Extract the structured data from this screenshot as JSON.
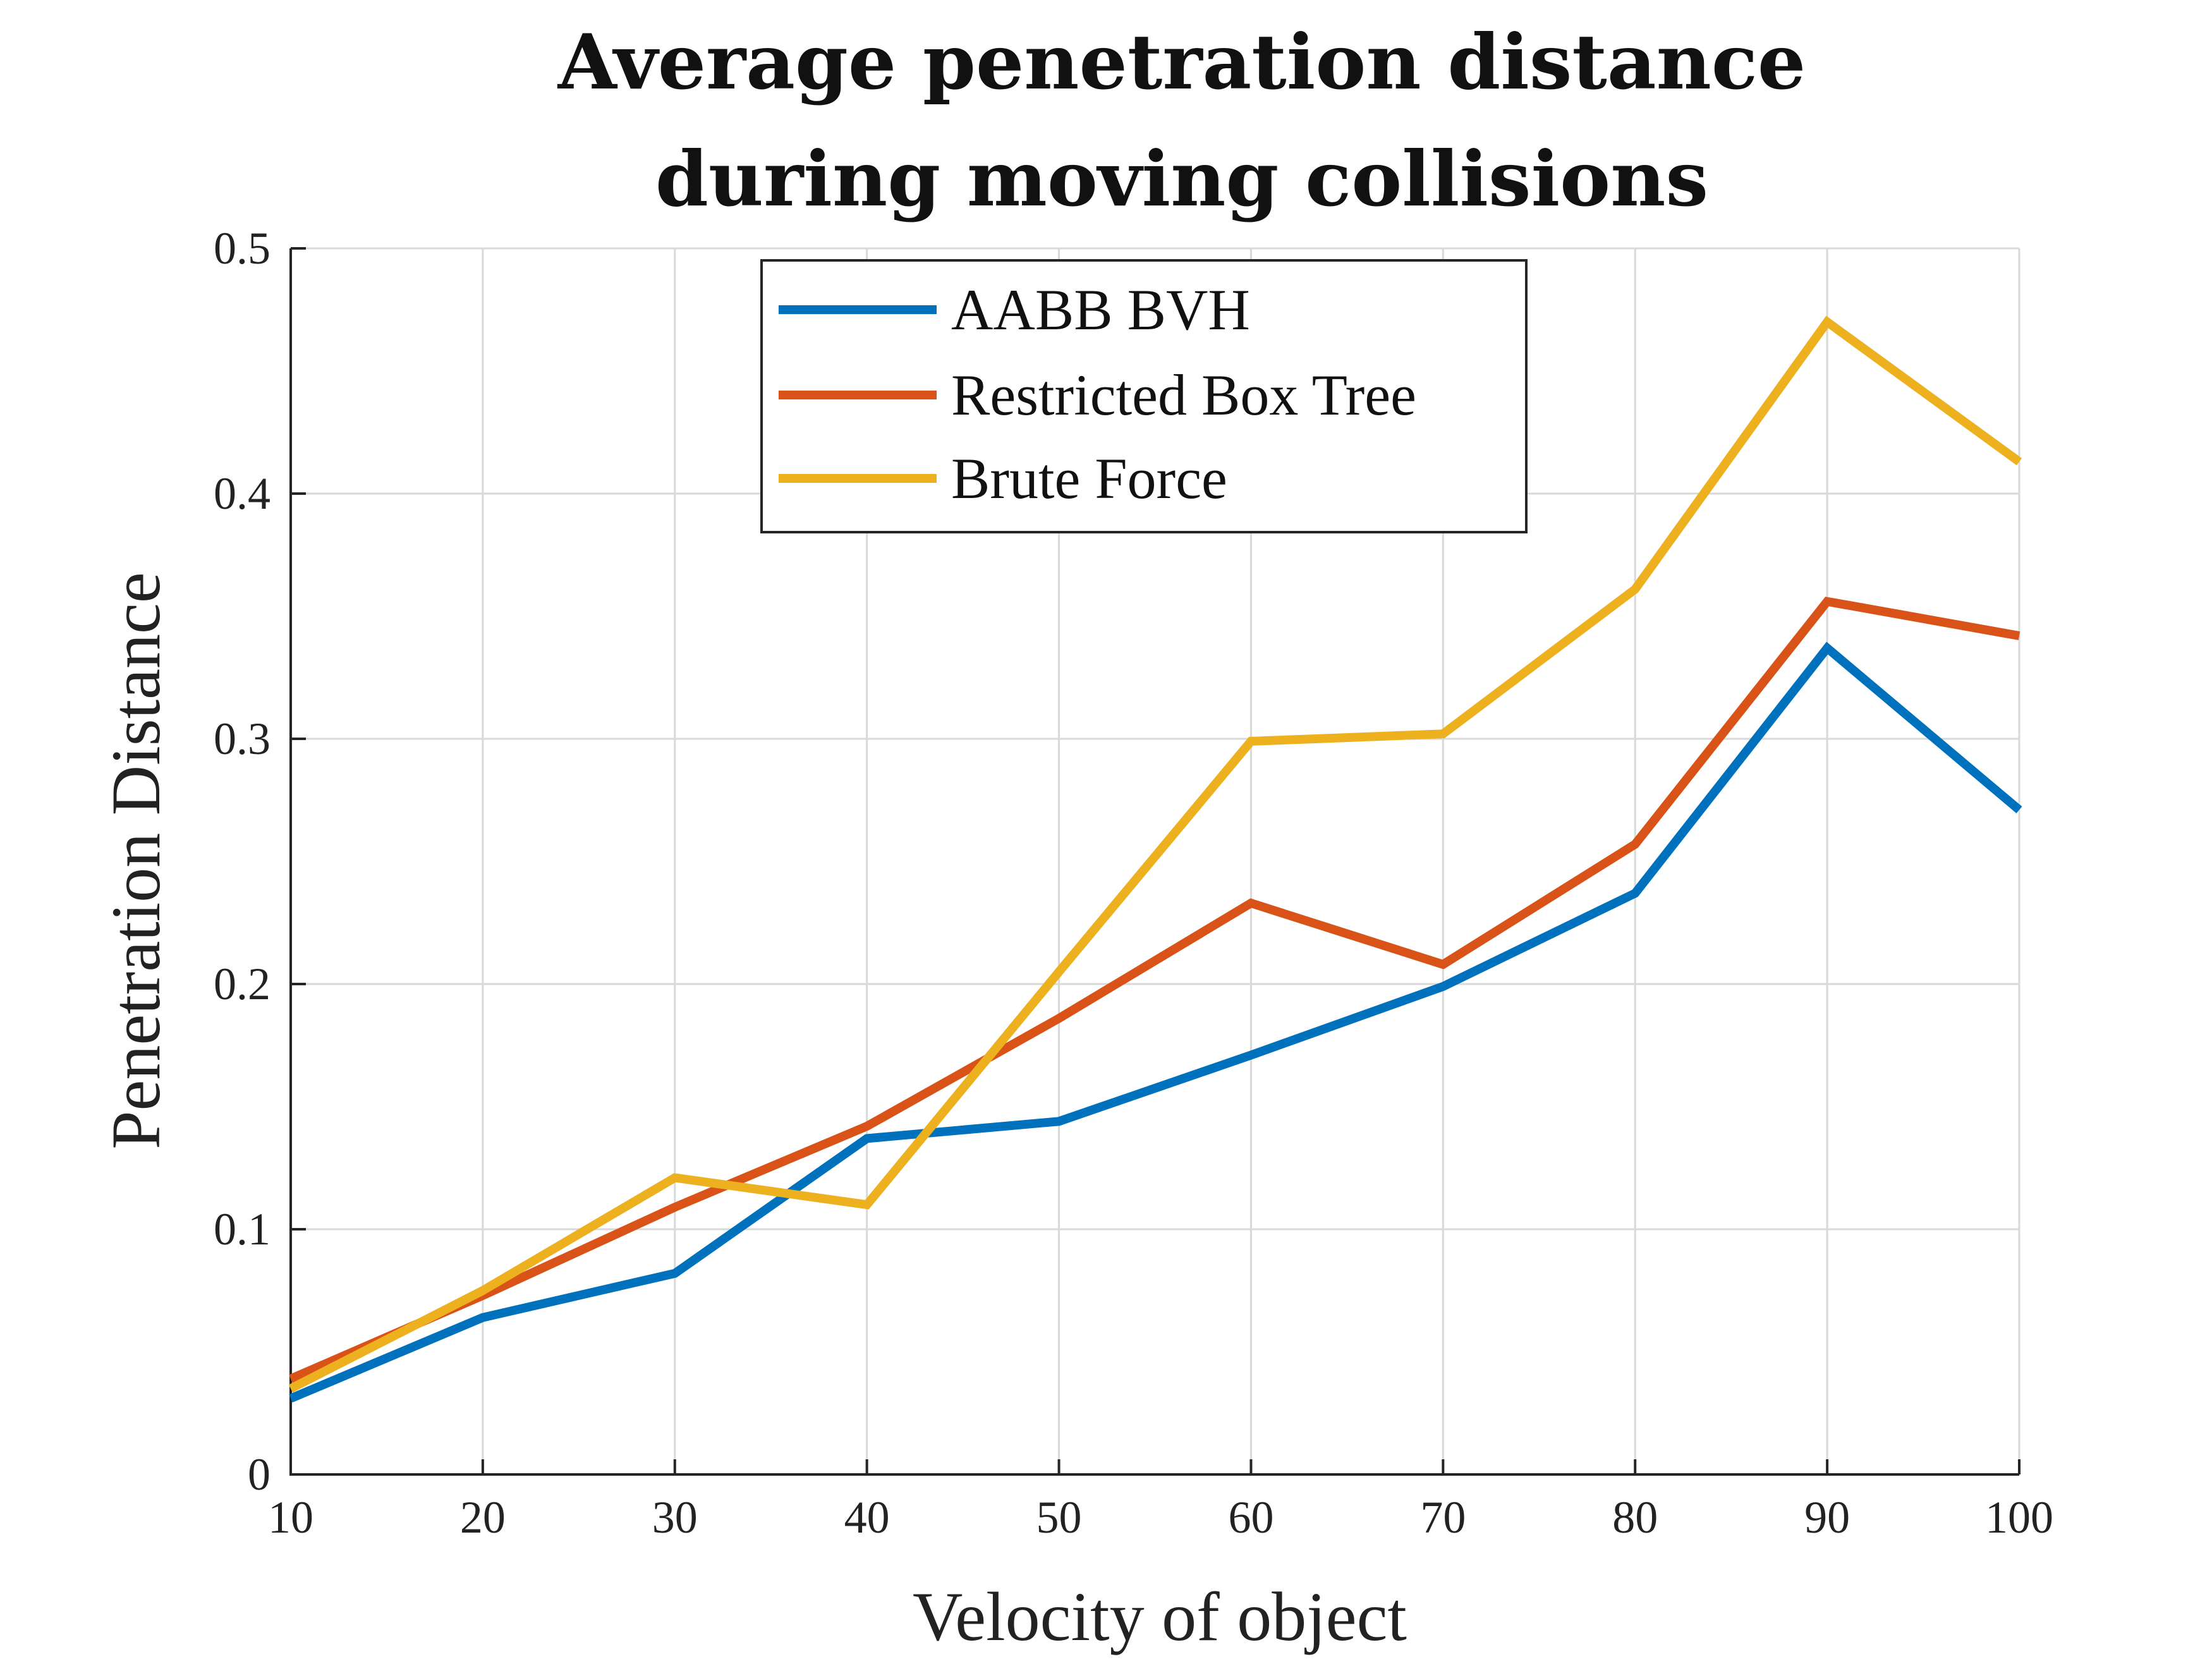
{
  "chart_data": {
    "type": "line",
    "title_lines": [
      "Average penetration distance",
      "during moving collisions"
    ],
    "xlabel": "Velocity of object",
    "ylabel": "Penetration Distance",
    "xlim": [
      10,
      100
    ],
    "ylim": [
      0,
      0.5
    ],
    "xticks": [
      10,
      20,
      30,
      40,
      50,
      60,
      70,
      80,
      90,
      100
    ],
    "xtick_labels": [
      "10",
      "20",
      "30",
      "40",
      "50",
      "60",
      "70",
      "80",
      "90",
      "100"
    ],
    "yticks": [
      0,
      0.1,
      0.2,
      0.3,
      0.4,
      0.5
    ],
    "ytick_labels": [
      "0",
      "0.1",
      "0.2",
      "0.3",
      "0.4",
      "0.5"
    ],
    "grid": true,
    "legend_position": "top-center",
    "x": [
      10,
      20,
      30,
      40,
      50,
      60,
      70,
      80,
      90,
      100
    ],
    "series": [
      {
        "name": "AABB BVH",
        "color": "#0072BD",
        "values": [
          0.031,
          0.064,
          0.082,
          0.137,
          0.144,
          0.171,
          0.199,
          0.237,
          0.337,
          0.271
        ]
      },
      {
        "name": "Restricted Box Tree",
        "color": "#D95319",
        "values": [
          0.039,
          0.073,
          0.109,
          0.142,
          0.186,
          0.233,
          0.208,
          0.257,
          0.356,
          0.342
        ]
      },
      {
        "name": "Brute Force",
        "color": "#EDB120",
        "values": [
          0.035,
          0.075,
          0.121,
          0.11,
          0.205,
          0.299,
          0.302,
          0.361,
          0.47,
          0.413
        ]
      }
    ]
  }
}
